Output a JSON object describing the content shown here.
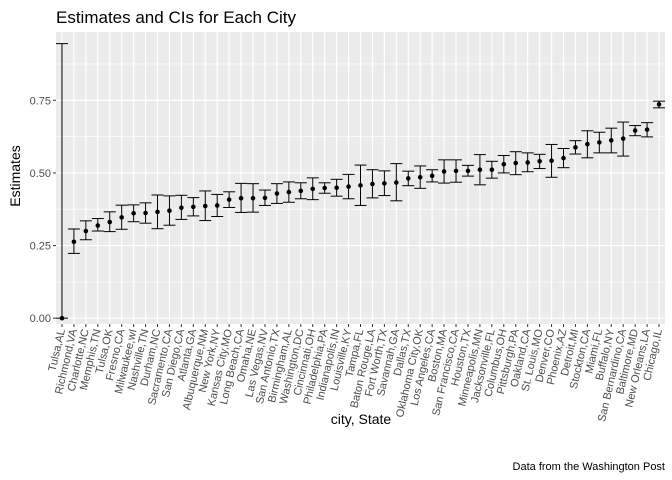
{
  "chart_data": {
    "type": "scatter",
    "title": "Estimates and CIs for Each City",
    "xlabel": "city, State",
    "ylabel": "Estimates",
    "caption": "Data from the Washington Post",
    "ylim": [
      -0.02,
      0.985
    ],
    "yticks": [
      0.0,
      0.25,
      0.5,
      0.75
    ],
    "ytick_labels": [
      "0.00",
      "0.25",
      "0.50",
      "0.75"
    ],
    "grid": true,
    "colors": {
      "panel": "#ebebeb",
      "grid": "#ffffff",
      "point": "#000000"
    },
    "points": [
      {
        "city": "Tulsa,AL",
        "estimate": 0.0,
        "lower": 0.0,
        "upper": 0.945
      },
      {
        "city": "Richmond,VA",
        "estimate": 0.263,
        "lower": 0.223,
        "upper": 0.307
      },
      {
        "city": "Charlotte,NC",
        "estimate": 0.3,
        "lower": 0.27,
        "upper": 0.335
      },
      {
        "city": "Memphis,TN",
        "estimate": 0.319,
        "lower": 0.3,
        "upper": 0.343
      },
      {
        "city": "Tulsa,OK",
        "estimate": 0.331,
        "lower": 0.298,
        "upper": 0.366
      },
      {
        "city": "Fresno,CA",
        "estimate": 0.347,
        "lower": 0.306,
        "upper": 0.389
      },
      {
        "city": "Milwaukee,wI",
        "estimate": 0.361,
        "lower": 0.332,
        "upper": 0.39
      },
      {
        "city": "Nashville,TN",
        "estimate": 0.362,
        "lower": 0.327,
        "upper": 0.397
      },
      {
        "city": "Durham,NC",
        "estimate": 0.366,
        "lower": 0.308,
        "upper": 0.424
      },
      {
        "city": "Sacramento,CA",
        "estimate": 0.37,
        "lower": 0.32,
        "upper": 0.421
      },
      {
        "city": "San Diego,CA",
        "estimate": 0.38,
        "lower": 0.34,
        "upper": 0.423
      },
      {
        "city": "Atlanta,GA",
        "estimate": 0.383,
        "lower": 0.352,
        "upper": 0.415
      },
      {
        "city": "Albuquerque,NM",
        "estimate": 0.386,
        "lower": 0.336,
        "upper": 0.438
      },
      {
        "city": "New York,NY",
        "estimate": 0.388,
        "lower": 0.35,
        "upper": 0.426
      },
      {
        "city": "Kansas City,MO",
        "estimate": 0.408,
        "lower": 0.381,
        "upper": 0.435
      },
      {
        "city": "Long Beach,CA",
        "estimate": 0.413,
        "lower": 0.364,
        "upper": 0.464
      },
      {
        "city": "Omaha,NE",
        "estimate": 0.413,
        "lower": 0.365,
        "upper": 0.463
      },
      {
        "city": "Las Vegas,NV",
        "estimate": 0.414,
        "lower": 0.388,
        "upper": 0.441
      },
      {
        "city": "San Antonio,TX",
        "estimate": 0.429,
        "lower": 0.395,
        "upper": 0.463
      },
      {
        "city": "Birmingham,AL",
        "estimate": 0.434,
        "lower": 0.399,
        "upper": 0.469
      },
      {
        "city": "Washington,DC",
        "estimate": 0.438,
        "lower": 0.411,
        "upper": 0.466
      },
      {
        "city": "Cincinnati,OH",
        "estimate": 0.445,
        "lower": 0.408,
        "upper": 0.483
      },
      {
        "city": "Philadelphia,PA",
        "estimate": 0.448,
        "lower": 0.43,
        "upper": 0.466
      },
      {
        "city": "Indianapolis,IN",
        "estimate": 0.449,
        "lower": 0.42,
        "upper": 0.478
      },
      {
        "city": "Louisville,KY",
        "estimate": 0.453,
        "lower": 0.411,
        "upper": 0.495
      },
      {
        "city": "Tampa,FL",
        "estimate": 0.457,
        "lower": 0.388,
        "upper": 0.527
      },
      {
        "city": "Baton Rouge,LA",
        "estimate": 0.462,
        "lower": 0.414,
        "upper": 0.511
      },
      {
        "city": "Fort Worth,TX",
        "estimate": 0.464,
        "lower": 0.422,
        "upper": 0.507
      },
      {
        "city": "Savannah,GA",
        "estimate": 0.467,
        "lower": 0.404,
        "upper": 0.532
      },
      {
        "city": "Dallas,TX",
        "estimate": 0.481,
        "lower": 0.456,
        "upper": 0.506
      },
      {
        "city": "Oklahoma City,OK",
        "estimate": 0.485,
        "lower": 0.447,
        "upper": 0.524
      },
      {
        "city": "Los Angeles,CA",
        "estimate": 0.49,
        "lower": 0.469,
        "upper": 0.511
      },
      {
        "city": "Boston,MA",
        "estimate": 0.505,
        "lower": 0.465,
        "upper": 0.545
      },
      {
        "city": "San Francisco,CA",
        "estimate": 0.507,
        "lower": 0.468,
        "upper": 0.545
      },
      {
        "city": "Houston,TX",
        "estimate": 0.507,
        "lower": 0.489,
        "upper": 0.526
      },
      {
        "city": "Minneapolis,MN",
        "estimate": 0.511,
        "lower": 0.459,
        "upper": 0.563
      },
      {
        "city": "Jacksonville,FL",
        "estimate": 0.511,
        "lower": 0.482,
        "upper": 0.54
      },
      {
        "city": "Columbus,OH",
        "estimate": 0.53,
        "lower": 0.5,
        "upper": 0.56
      },
      {
        "city": "Pittsburgh,PA",
        "estimate": 0.534,
        "lower": 0.494,
        "upper": 0.573
      },
      {
        "city": "Oakland,CA",
        "estimate": 0.536,
        "lower": 0.504,
        "upper": 0.569
      },
      {
        "city": "St. Louis,MO",
        "estimate": 0.54,
        "lower": 0.515,
        "upper": 0.564
      },
      {
        "city": "Denver,CO",
        "estimate": 0.542,
        "lower": 0.485,
        "upper": 0.598
      },
      {
        "city": "Phoenix,AZ",
        "estimate": 0.551,
        "lower": 0.518,
        "upper": 0.584
      },
      {
        "city": "Detroit,MI",
        "estimate": 0.588,
        "lower": 0.565,
        "upper": 0.611
      },
      {
        "city": "Stockton,CA",
        "estimate": 0.599,
        "lower": 0.552,
        "upper": 0.645
      },
      {
        "city": "Miami,FL",
        "estimate": 0.605,
        "lower": 0.569,
        "upper": 0.64
      },
      {
        "city": "Buffalo,NY",
        "estimate": 0.612,
        "lower": 0.569,
        "upper": 0.654
      },
      {
        "city": "San Bernardino,CA",
        "estimate": 0.618,
        "lower": 0.558,
        "upper": 0.675
      },
      {
        "city": "Baltimore,MD",
        "estimate": 0.646,
        "lower": 0.628,
        "upper": 0.663
      },
      {
        "city": "New Orleans,LA",
        "estimate": 0.649,
        "lower": 0.624,
        "upper": 0.673
      },
      {
        "city": "Chicago,IL",
        "estimate": 0.736,
        "lower": 0.724,
        "upper": 0.747
      }
    ]
  }
}
